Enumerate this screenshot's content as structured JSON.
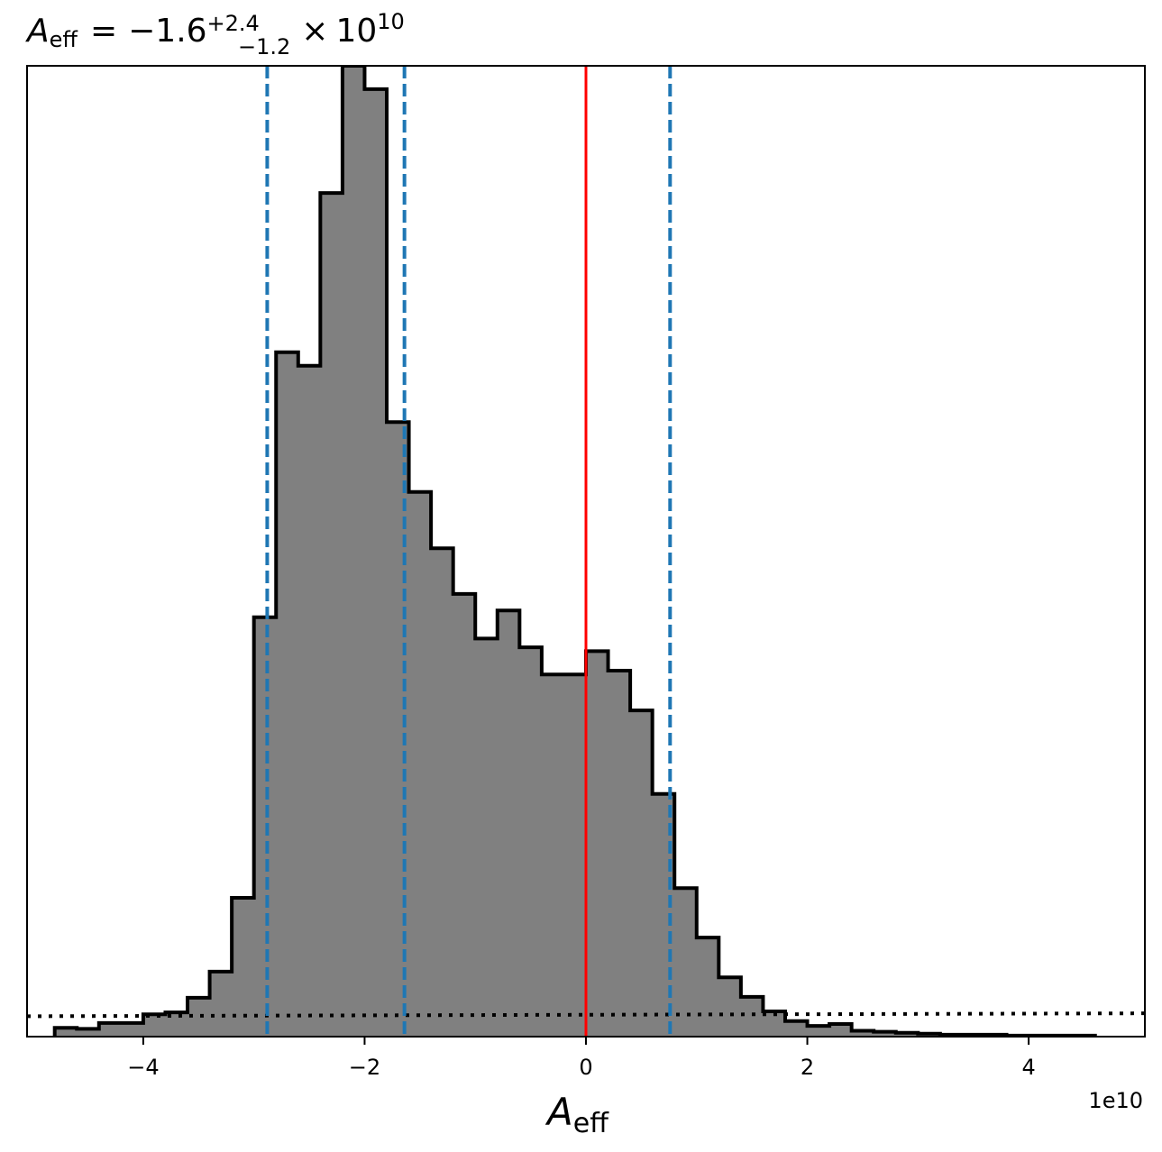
{
  "chart_data": {
    "type": "histogram",
    "title": {
      "symbol": "A",
      "subscript": "eff",
      "equals": "=",
      "median": "−1.6",
      "upper_err": "+2.4",
      "lower_err": "−1.2",
      "times": "×",
      "base": "10",
      "exponent": "10"
    },
    "xlabel": {
      "symbol": "A",
      "subscript": "eff"
    },
    "x_offset_label": "1e10",
    "xlim": [
      -5.05,
      5.05
    ],
    "ylim": [
      0,
      1.0
    ],
    "x_ticks": [
      {
        "value": -4,
        "label": "−4"
      },
      {
        "value": -2,
        "label": "−2"
      },
      {
        "value": 0,
        "label": "0"
      },
      {
        "value": 2,
        "label": "2"
      },
      {
        "value": 4,
        "label": "4"
      }
    ],
    "grid": false,
    "bin_width": 0.2,
    "bin_start": -4.8,
    "bin_values": [
      0.009,
      0.008,
      0.014,
      0.014,
      0.023,
      0.025,
      0.04,
      0.067,
      0.143,
      0.432,
      0.705,
      0.691,
      0.869,
      1.0,
      0.976,
      0.633,
      0.561,
      0.503,
      0.456,
      0.41,
      0.439,
      0.401,
      0.373,
      0.373,
      0.397,
      0.377,
      0.336,
      0.25,
      0.153,
      0.102,
      0.061,
      0.041,
      0.026,
      0.016,
      0.011,
      0.013,
      0.006,
      0.005,
      0.004,
      0.003,
      0.002,
      0.002,
      0.002,
      0.001,
      0.001,
      0.001,
      0.001
    ],
    "fill_color": "#808080",
    "edge_color": "#000000",
    "reference_line": {
      "x": 0.0,
      "color": "#ff0000"
    },
    "quantile_lines": {
      "values": [
        -2.88,
        -1.64,
        0.76
      ],
      "color": "#1f77b4",
      "style": "dashed"
    },
    "prior_line": {
      "y_start": 0.021,
      "y_end": 0.024,
      "color": "#000000",
      "style": "dotted"
    }
  }
}
